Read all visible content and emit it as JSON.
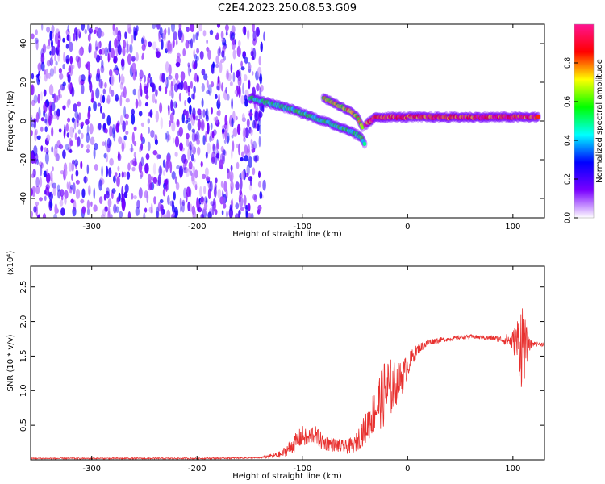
{
  "figure": {
    "title": "C2E4.2023.250.08.53.G09"
  },
  "chart_data": [
    {
      "type": "heatmap",
      "title": "C2E4.2023.250.08.53.G09",
      "xlabel": "Height of straight line (km)",
      "ylabel": "Frequency (Hz)",
      "xlim": [
        -358,
        130
      ],
      "ylim": [
        -50,
        50
      ],
      "xticks": [
        -300,
        -200,
        -100,
        0,
        100
      ],
      "xtick_labels": [
        "-300",
        "-200",
        "-100",
        "0",
        "100"
      ],
      "yticks": [
        -40,
        -20,
        0,
        20,
        40
      ],
      "ytick_labels": [
        "-40",
        "-20",
        "0",
        "20",
        "40"
      ],
      "colorbar": {
        "label": "Normalized spectral amplitude",
        "range": [
          0,
          1
        ],
        "ticks": [
          0.0,
          0.2,
          0.4,
          0.6,
          0.8
        ],
        "tick_labels": [
          "0.0",
          "0.2",
          "0.4",
          "0.6",
          "0.8"
        ],
        "colormap": [
          "#ffffff",
          "#7a00ff",
          "#0000ff",
          "#00ffff",
          "#00ff00",
          "#ffff00",
          "#ff0000",
          "#ff1493"
        ]
      },
      "regions": [
        {
          "name": "noise",
          "x_range": [
            -358,
            -136
          ],
          "freq_range": [
            -50,
            50
          ],
          "amplitude": 0.25
        }
      ],
      "ridges": [
        {
          "points": [
            [
              -150,
              12
            ],
            [
              -130,
              9
            ],
            [
              -110,
              6
            ],
            [
              -90,
              2
            ],
            [
              -70,
              -2
            ],
            [
              -55,
              -5
            ],
            [
              -45,
              -8
            ],
            [
              -40,
              -12
            ]
          ],
          "amplitude": 0.55
        },
        {
          "points": [
            [
              -80,
              12
            ],
            [
              -65,
              8
            ],
            [
              -55,
              5
            ],
            [
              -48,
              2
            ],
            [
              -42,
              -4
            ]
          ],
          "amplitude": 0.75
        },
        {
          "points": [
            [
              -40,
              -2
            ],
            [
              -30,
              2
            ],
            [
              -20,
              2
            ],
            [
              0,
              2
            ],
            [
              40,
              2
            ],
            [
              80,
              2
            ],
            [
              100,
              2
            ],
            [
              125,
              2
            ]
          ],
          "amplitude": 0.95
        }
      ]
    },
    {
      "type": "line",
      "xlabel": "Height of straight line (km)",
      "ylabel": "SNR (10 * v/v)",
      "y_multiplier": "(x10⁴)",
      "xlim": [
        -358,
        130
      ],
      "ylim": [
        0,
        2.8
      ],
      "xticks": [
        -300,
        -200,
        -100,
        0,
        100
      ],
      "xtick_labels": [
        "-300",
        "-200",
        "-100",
        "0",
        "100"
      ],
      "yticks": [
        0.5,
        1.0,
        1.5,
        2.0,
        2.5
      ],
      "ytick_labels": [
        "0.5",
        "1.0",
        "1.5",
        "2.0",
        "2.5"
      ],
      "color": "#e8312f",
      "series": [
        {
          "x": [
            -358,
            -300,
            -200,
            -140,
            -120,
            -110,
            -100,
            -95,
            -90,
            -80,
            -70,
            -60,
            -50,
            -45,
            -40,
            -35,
            -30,
            -25,
            -20,
            -15,
            -10,
            -5,
            0,
            5,
            10,
            20,
            30,
            40,
            50,
            60,
            70,
            80,
            90,
            100,
            103,
            106,
            108,
            110,
            112,
            115,
            120,
            130
          ],
          "y": [
            0.02,
            0.02,
            0.02,
            0.03,
            0.08,
            0.2,
            0.35,
            0.3,
            0.38,
            0.25,
            0.22,
            0.18,
            0.22,
            0.35,
            0.45,
            0.6,
            0.75,
            0.9,
            1.0,
            1.05,
            1.1,
            1.2,
            1.35,
            1.5,
            1.6,
            1.7,
            1.73,
            1.75,
            1.77,
            1.78,
            1.77,
            1.76,
            1.74,
            1.72,
            1.7,
            1.7,
            1.72,
            1.7,
            1.6,
            1.66,
            1.68,
            1.67
          ],
          "noise": [
            0.01,
            0.01,
            0.01,
            0.01,
            0.05,
            0.12,
            0.15,
            0.12,
            0.15,
            0.12,
            0.1,
            0.1,
            0.12,
            0.18,
            0.22,
            0.28,
            0.35,
            0.45,
            0.55,
            0.4,
            0.3,
            0.25,
            0.18,
            0.12,
            0.08,
            0.05,
            0.04,
            0.03,
            0.03,
            0.03,
            0.03,
            0.04,
            0.05,
            0.15,
            0.3,
            0.5,
            0.7,
            0.6,
            0.4,
            0.1,
            0.03,
            0.03
          ]
        }
      ]
    }
  ]
}
